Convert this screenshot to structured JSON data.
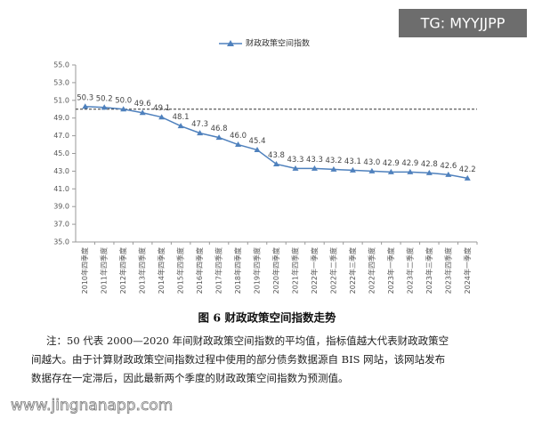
{
  "chart_data": {
    "type": "line",
    "legend": "财政政策空间指数",
    "series": [
      {
        "name": "财政政策空间指数",
        "color": "#4f81bd",
        "values": [
          50.3,
          50.2,
          50.0,
          49.6,
          49.1,
          48.1,
          47.3,
          46.8,
          46.0,
          45.4,
          43.8,
          43.3,
          43.3,
          43.2,
          43.1,
          43.0,
          42.9,
          42.9,
          42.8,
          42.6,
          42.2
        ],
        "value_labels": [
          "50.3",
          "50.2",
          "50.0",
          "49.6",
          "49.1",
          "48.1",
          "47.3",
          "46.8",
          "46.0",
          "45.4",
          "43.8",
          "43.3",
          "43.3",
          "43.2",
          "43.1",
          "43.0",
          "42.9",
          "42.9",
          "42.8",
          "42.6",
          "42.2"
        ]
      }
    ],
    "categories": [
      "2010年四季度",
      "2011年四季度",
      "2012年四季度",
      "2013年四季度",
      "2014年四季度",
      "2015年四季度",
      "2016年四季度",
      "2017年四季度",
      "2018年四季度",
      "2019年四季度",
      "2020年四季度",
      "2021年四季度",
      "2022年一季度",
      "2022年二季度",
      "2022年三季度",
      "2022年四季度",
      "2023年一季度",
      "2023年二季度",
      "2023年三季度",
      "2023年四季度",
      "2024年一季度"
    ],
    "ylim": [
      35,
      55
    ],
    "yticks": [
      {
        "value": 35,
        "label": "35.0"
      },
      {
        "value": 37,
        "label": "37.0"
      },
      {
        "value": 39,
        "label": "39.0"
      },
      {
        "value": 41,
        "label": "41.0"
      },
      {
        "value": 43,
        "label": "43.0"
      },
      {
        "value": 45,
        "label": "45.0"
      },
      {
        "value": 47,
        "label": "47.0"
      },
      {
        "value": 49,
        "label": "49.0"
      },
      {
        "value": 51,
        "label": "51.0"
      },
      {
        "value": 53,
        "label": "53.0"
      },
      {
        "value": 55,
        "label": "55.0"
      }
    ],
    "reference_value": 50,
    "caption": "图 6  财政政策空间指数走势",
    "note": [
      "注：50 代表 2000—2020 年间财政政策空间指数的平均值，指标值越大代表财政政策空",
      "间越大。由于计算财政政策空间指数过程中使用的部分债务数据源自 BIS 网站，该网站发布",
      "数据存在一定滞后，因此最新两个季度的财政政策空间指数为预测值。"
    ]
  },
  "watermarks": [
    "TG: MYYJJPP",
    "www.jingnanapp.com"
  ]
}
